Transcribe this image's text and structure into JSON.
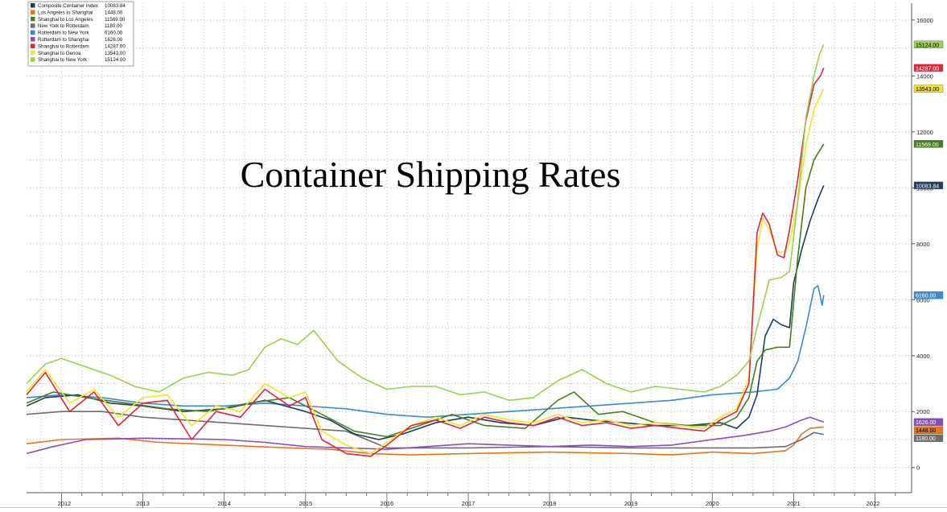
{
  "chart_data": {
    "type": "line",
    "title": "Container Shipping Rates",
    "xlabel": "",
    "ylabel": "",
    "ylim": [
      -900,
      16600
    ],
    "xlim": [
      2011.57,
      2022.45
    ],
    "y_ticks": [
      0,
      2000,
      4000,
      6000,
      8000,
      10000,
      12000,
      14000,
      16000
    ],
    "x_ticks": [
      "2012",
      "2013",
      "2014",
      "2015",
      "2016",
      "2017",
      "2018",
      "2019",
      "2020",
      "2021",
      "2022"
    ],
    "grid": true,
    "legend_position": "top-left",
    "axis_side": "right",
    "series": [
      {
        "name": "Composite Container Index",
        "last_value": 10083.84,
        "last_label": "10083.84",
        "color": "#1f3d5c",
        "label_text_color": "#ffffff",
        "draw_order": 7,
        "x": [
          2011.57,
          2011.8,
          2012.2,
          2012.6,
          2013.0,
          2013.5,
          2014.0,
          2014.5,
          2015.0,
          2015.3,
          2015.6,
          2015.9,
          2016.2,
          2016.6,
          2017.0,
          2017.4,
          2017.8,
          2018.2,
          2018.5,
          2018.9,
          2019.3,
          2019.7,
          2020.1,
          2020.3,
          2020.45,
          2020.55,
          2020.65,
          2020.75,
          2020.85,
          2020.95,
          2021.0,
          2021.1,
          2021.2,
          2021.3,
          2021.37
        ],
        "values": [
          2200,
          2500,
          2600,
          2300,
          2200,
          2000,
          2100,
          2400,
          2000,
          1700,
          1200,
          1000,
          1200,
          1600,
          1800,
          1600,
          1500,
          1800,
          1700,
          1600,
          1500,
          1500,
          1600,
          1400,
          1800,
          2600,
          4700,
          5300,
          5100,
          5000,
          6600,
          7800,
          8800,
          9600,
          10084
        ]
      },
      {
        "name": "Los Angeles to Shanghai",
        "last_value": 1448.0,
        "last_label": "1448.00",
        "color": "#e8751a",
        "label_text_color": "#000000",
        "draw_order": 1,
        "x": [
          2011.57,
          2012.0,
          2012.7,
          2013.2,
          2014.0,
          2014.8,
          2015.3,
          2015.8,
          2016.3,
          2017.0,
          2018.0,
          2019.0,
          2019.5,
          2020.0,
          2020.5,
          2020.9,
          2021.0,
          2021.1,
          2021.2,
          2021.37
        ],
        "values": [
          850,
          1000,
          1050,
          900,
          800,
          700,
          650,
          500,
          450,
          500,
          550,
          500,
          450,
          550,
          500,
          600,
          800,
          1200,
          1400,
          1448
        ]
      },
      {
        "name": "Shanghai to Los Angeles",
        "last_value": 11569.0,
        "last_label": "11569.00",
        "color": "#4a7d23",
        "label_text_color": "#ffffff",
        "draw_order": 8,
        "x": [
          2011.57,
          2011.9,
          2012.3,
          2012.8,
          2013.3,
          2013.8,
          2014.3,
          2014.8,
          2015.2,
          2015.6,
          2016.0,
          2016.4,
          2016.8,
          2017.2,
          2017.7,
          2018.1,
          2018.3,
          2018.6,
          2018.9,
          2019.3,
          2019.7,
          2020.1,
          2020.3,
          2020.45,
          2020.55,
          2020.65,
          2020.8,
          2020.95,
          2021.05,
          2021.15,
          2021.25,
          2021.37
        ],
        "values": [
          2300,
          2700,
          2500,
          2300,
          2100,
          2000,
          2300,
          2500,
          1900,
          1300,
          1100,
          1500,
          1900,
          1500,
          1400,
          2400,
          2700,
          1900,
          2000,
          1600,
          1500,
          1500,
          1800,
          2500,
          3800,
          4200,
          4300,
          4300,
          7500,
          10000,
          11000,
          11569
        ]
      },
      {
        "name": "New York to Rotterdam",
        "last_value": 1180.0,
        "last_label": "1180.00",
        "color": "#6e6e6e",
        "label_text_color": "#ffffff",
        "draw_order": 2,
        "x": [
          2011.57,
          2012.0,
          2012.5,
          2013.0,
          2013.5,
          2014.0,
          2014.5,
          2015.0,
          2015.5,
          2016.0,
          2016.5,
          2017.0,
          2018.0,
          2019.0,
          2020.0,
          2020.5,
          2020.9,
          2021.1,
          2021.25,
          2021.37
        ],
        "values": [
          1900,
          2000,
          2000,
          1800,
          1700,
          1600,
          1500,
          1400,
          1300,
          700,
          700,
          700,
          750,
          700,
          700,
          700,
          750,
          1000,
          1250,
          1180
        ]
      },
      {
        "name": "Rotterdam to New York",
        "last_value": 6160.0,
        "last_label": "6160.00",
        "color": "#3a8ad6",
        "label_text_color": "#ffffff",
        "draw_order": 6,
        "x": [
          2011.57,
          2012.0,
          2012.5,
          2013.0,
          2013.5,
          2014.0,
          2014.5,
          2015.0,
          2015.5,
          2016.0,
          2016.5,
          2017.0,
          2017.5,
          2018.0,
          2018.5,
          2019.0,
          2019.5,
          2020.0,
          2020.5,
          2020.8,
          2020.95,
          2021.05,
          2021.15,
          2021.25,
          2021.3,
          2021.35,
          2021.37
        ],
        "values": [
          2500,
          2600,
          2500,
          2300,
          2200,
          2200,
          2300,
          2200,
          2100,
          1900,
          1800,
          1900,
          2000,
          2100,
          2200,
          2300,
          2400,
          2600,
          2700,
          2800,
          3200,
          3800,
          5000,
          6400,
          6500,
          5800,
          6160
        ]
      },
      {
        "name": "Rotterdam to Shanghai",
        "last_value": 1626.0,
        "last_label": "1626.00",
        "color": "#8a4dbd",
        "label_text_color": "#ffffff",
        "draw_order": 3,
        "x": [
          2011.57,
          2011.9,
          2012.3,
          2013.0,
          2014.0,
          2014.5,
          2015.0,
          2015.5,
          2016.0,
          2016.5,
          2017.0,
          2017.5,
          2018.0,
          2018.5,
          2019.0,
          2019.5,
          2020.0,
          2020.4,
          2020.7,
          2020.9,
          2021.1,
          2021.2,
          2021.3,
          2021.37
        ],
        "values": [
          500,
          750,
          1000,
          1050,
          1000,
          900,
          750,
          700,
          650,
          750,
          850,
          800,
          750,
          800,
          750,
          800,
          1000,
          1150,
          1300,
          1450,
          1700,
          1800,
          1700,
          1626
        ]
      },
      {
        "name": "Shanghai to Rotterdam",
        "last_value": 14287.0,
        "last_label": "14287.00",
        "color": "#e0253c",
        "label_text_color": "#ffffff",
        "draw_order": 10,
        "x": [
          2011.57,
          2011.8,
          2012.1,
          2012.4,
          2012.7,
          2013.0,
          2013.3,
          2013.6,
          2013.9,
          2014.2,
          2014.5,
          2014.8,
          2015.0,
          2015.2,
          2015.5,
          2015.8,
          2016.0,
          2016.3,
          2016.6,
          2016.9,
          2017.2,
          2017.5,
          2017.8,
          2018.1,
          2018.4,
          2018.7,
          2019.0,
          2019.3,
          2019.6,
          2019.9,
          2020.1,
          2020.3,
          2020.45,
          2020.55,
          2020.62,
          2020.7,
          2020.8,
          2020.88,
          2020.95,
          2021.05,
          2021.15,
          2021.25,
          2021.33,
          2021.37
        ],
        "values": [
          2600,
          3400,
          2000,
          2700,
          1500,
          2300,
          2400,
          1000,
          2000,
          1800,
          2800,
          2200,
          2500,
          1000,
          500,
          400,
          800,
          1500,
          1700,
          1400,
          1800,
          1600,
          1500,
          1800,
          1500,
          1600,
          1400,
          1500,
          1400,
          1300,
          1700,
          2000,
          3000,
          8400,
          9100,
          8700,
          7600,
          7500,
          8500,
          10300,
          12400,
          13700,
          14000,
          14287
        ]
      },
      {
        "name": "Shanghai to Genoa",
        "last_value": 13543.0,
        "last_label": "13543.00",
        "color": "#f2e52a",
        "label_text_color": "#000000",
        "draw_order": 9,
        "x": [
          2011.57,
          2011.8,
          2012.1,
          2012.4,
          2012.7,
          2013.0,
          2013.3,
          2013.6,
          2013.9,
          2014.2,
          2014.5,
          2014.8,
          2015.0,
          2015.2,
          2015.5,
          2015.8,
          2016.0,
          2016.3,
          2016.6,
          2016.9,
          2017.2,
          2017.5,
          2017.8,
          2018.1,
          2018.4,
          2018.7,
          2019.0,
          2019.3,
          2019.6,
          2019.9,
          2020.1,
          2020.3,
          2020.45,
          2020.55,
          2020.62,
          2020.7,
          2020.8,
          2020.88,
          2020.95,
          2021.05,
          2021.15,
          2021.25,
          2021.33,
          2021.37
        ],
        "values": [
          2700,
          3500,
          2300,
          2800,
          1800,
          2500,
          2600,
          1500,
          2200,
          2000,
          3000,
          2500,
          2700,
          1300,
          800,
          500,
          900,
          1500,
          1800,
          1500,
          1900,
          1700,
          1600,
          1900,
          1600,
          1700,
          1500,
          1600,
          1500,
          1400,
          1800,
          2100,
          3200,
          7800,
          8900,
          8500,
          7700,
          7700,
          8000,
          9500,
          11500,
          12800,
          13300,
          13543
        ]
      },
      {
        "name": "Shanghai to New York",
        "last_value": 15124.0,
        "last_label": "15124.00",
        "color": "#9dcf50",
        "label_text_color": "#000000",
        "draw_order": 11,
        "x": [
          2011.57,
          2011.8,
          2012.0,
          2012.3,
          2012.6,
          2012.9,
          2013.2,
          2013.5,
          2013.8,
          2014.1,
          2014.3,
          2014.5,
          2014.7,
          2014.9,
          2015.1,
          2015.4,
          2015.7,
          2016.0,
          2016.3,
          2016.6,
          2016.9,
          2017.2,
          2017.5,
          2017.8,
          2018.1,
          2018.4,
          2018.7,
          2019.0,
          2019.3,
          2019.6,
          2019.9,
          2020.1,
          2020.3,
          2020.45,
          2020.55,
          2020.7,
          2020.85,
          2020.95,
          2021.05,
          2021.15,
          2021.25,
          2021.32,
          2021.37
        ],
        "values": [
          3000,
          3700,
          3900,
          3600,
          3300,
          2900,
          2700,
          3200,
          3400,
          3300,
          3500,
          4300,
          4600,
          4400,
          4900,
          3800,
          3200,
          2800,
          2900,
          2900,
          2600,
          2700,
          2400,
          2500,
          3100,
          3500,
          3000,
          2700,
          2900,
          2800,
          2700,
          2900,
          3300,
          3800,
          5000,
          6700,
          6800,
          7000,
          9500,
          12500,
          14000,
          14800,
          15124
        ]
      }
    ]
  }
}
